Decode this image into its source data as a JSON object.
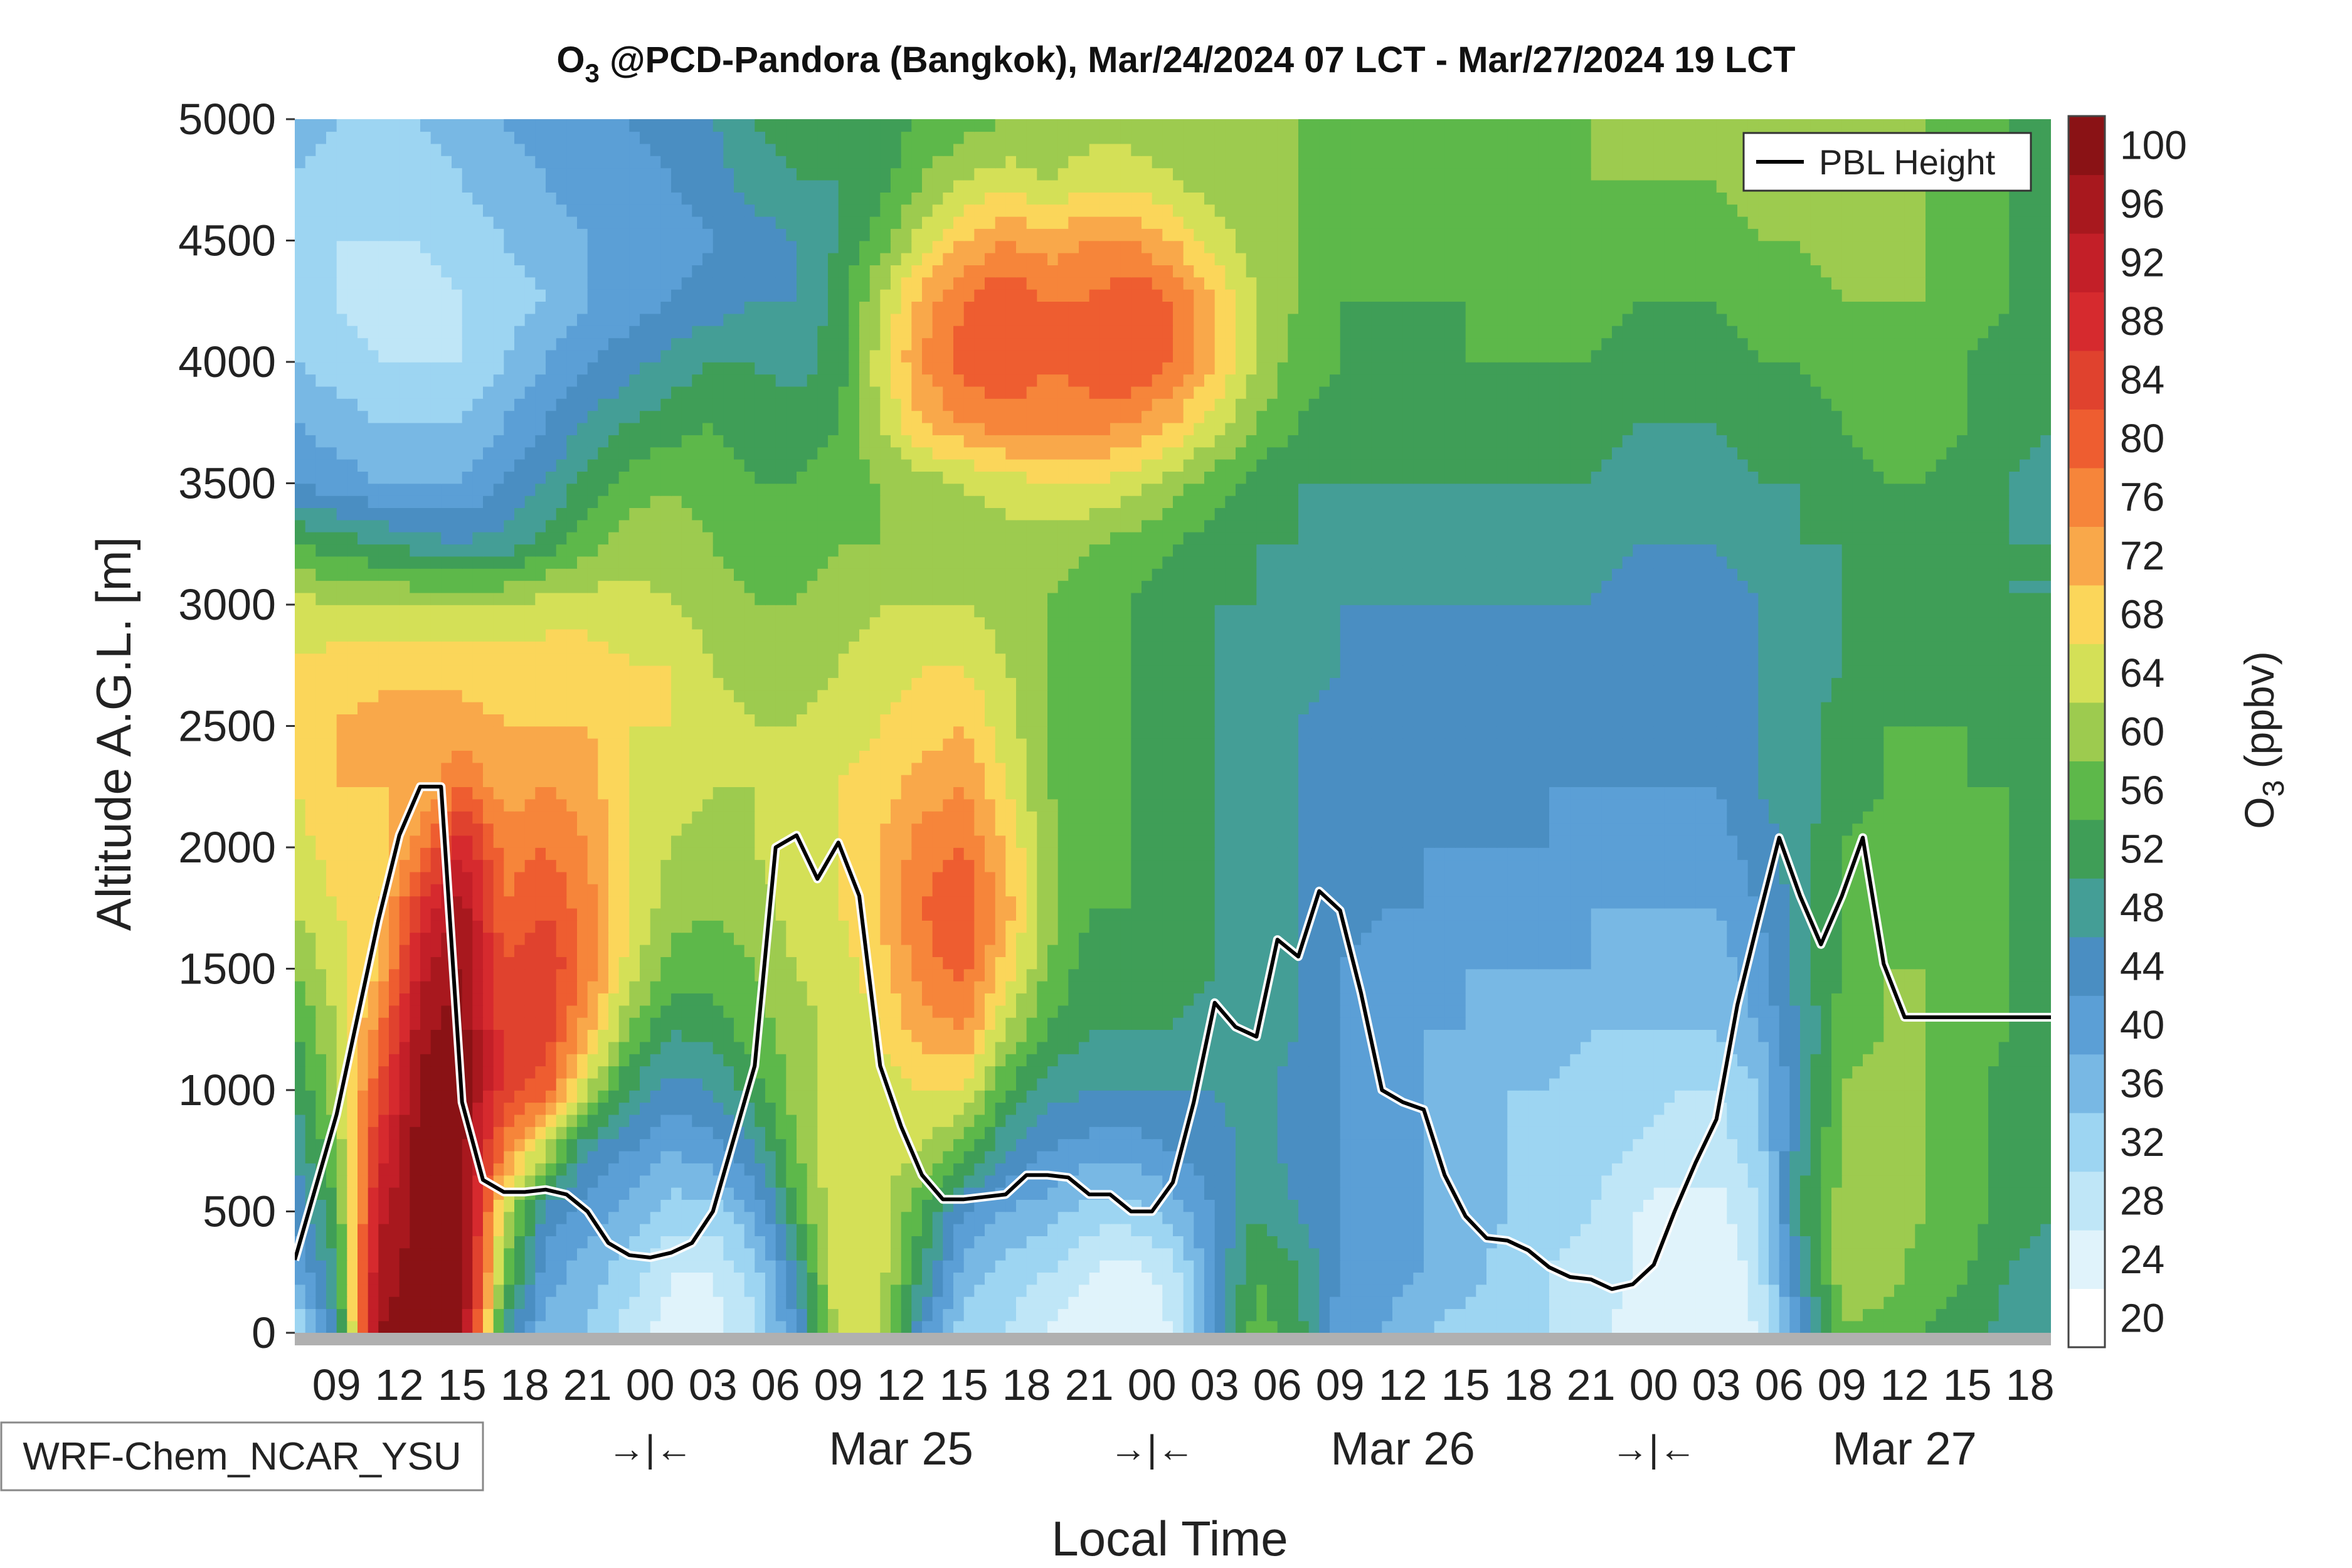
{
  "chart_data": {
    "type": "heatmap",
    "title": {
      "prefix": "O",
      "subscript": "3",
      "rest": " @PCD-Pandora (Bangkok), Mar/24/2024 07 LCT - Mar/27/2024 19 LCT"
    },
    "xlabel": "Local Time",
    "ylabel": "Altitude A.G.L. [m]",
    "colorbar_label": {
      "prefix": "O",
      "subscript": "3",
      "rest": " (ppbv)"
    },
    "model_label": "WRF-Chem_NCAR_YSU",
    "legend": {
      "entries": [
        "PBL Height"
      ],
      "position": "top-right"
    },
    "xlim_hours": [
      0,
      84
    ],
    "ylim": [
      0,
      5000
    ],
    "yticks": [
      0,
      500,
      1000,
      1500,
      2000,
      2500,
      3000,
      3500,
      4000,
      4500,
      5000
    ],
    "xtick_labels": [
      "09",
      "12",
      "15",
      "18",
      "21",
      "00",
      "03",
      "06",
      "09",
      "12",
      "15",
      "18",
      "21",
      "00",
      "03",
      "06",
      "09",
      "12",
      "15",
      "18",
      "21",
      "00",
      "03",
      "06",
      "09",
      "12",
      "15",
      "18"
    ],
    "xtick_hours": [
      2,
      5,
      8,
      11,
      14,
      17,
      20,
      23,
      26,
      29,
      32,
      35,
      38,
      41,
      44,
      47,
      50,
      53,
      56,
      59,
      62,
      65,
      68,
      71,
      74,
      77,
      80,
      83
    ],
    "day_labels": [
      {
        "text": "Mar 25",
        "hour": 29
      },
      {
        "text": "Mar 26",
        "hour": 53
      },
      {
        "text": "Mar 27",
        "hour": 77
      }
    ],
    "night_markers": [
      {
        "text": "→|←",
        "hour": 17
      },
      {
        "text": "→|←",
        "hour": 41
      },
      {
        "text": "→|←",
        "hour": 65
      }
    ],
    "colorbar_levels": [
      20,
      24,
      28,
      32,
      36,
      40,
      44,
      48,
      52,
      56,
      60,
      64,
      68,
      72,
      76,
      80,
      84,
      88,
      92,
      96,
      100
    ],
    "colorbar_colors": [
      "#ffffff",
      "#e0f3fb",
      "#bfe6f7",
      "#9dd5f2",
      "#78b8e4",
      "#5b9fd6",
      "#4a8ec2",
      "#449e96",
      "#3f9e57",
      "#5db84a",
      "#9dcb4f",
      "#d4e057",
      "#fbd65a",
      "#f9a84a",
      "#f6853a",
      "#ee5d30",
      "#e0422e",
      "#d62a2e",
      "#c31f28",
      "#a8181e",
      "#8a1215"
    ],
    "pbl_height": {
      "name": "PBL Height",
      "hours": [
        0,
        1,
        2,
        3,
        4,
        5,
        6,
        7,
        8,
        9,
        10,
        11,
        12,
        13,
        14,
        15,
        16,
        17,
        18,
        19,
        20,
        21,
        22,
        23,
        24,
        25,
        26,
        27,
        28,
        29,
        30,
        31,
        32,
        33,
        34,
        35,
        36,
        37,
        38,
        39,
        40,
        41,
        42,
        43,
        44,
        45,
        46,
        47,
        48,
        49,
        50,
        51,
        52,
        53,
        54,
        55,
        56,
        57,
        58,
        59,
        60,
        61,
        62,
        63,
        64,
        65,
        66,
        67,
        68,
        69,
        70,
        71,
        72,
        73,
        74,
        75,
        76,
        77,
        78,
        79,
        80,
        81,
        82,
        83,
        84
      ],
      "values": [
        300,
        600,
        900,
        1300,
        1700,
        2050,
        2250,
        2250,
        950,
        630,
        580,
        580,
        590,
        570,
        500,
        370,
        320,
        310,
        330,
        370,
        500,
        800,
        1100,
        2000,
        2050,
        1870,
        2020,
        1800,
        1100,
        850,
        650,
        550,
        550,
        560,
        570,
        650,
        650,
        640,
        570,
        570,
        500,
        500,
        620,
        950,
        1360,
        1260,
        1220,
        1620,
        1550,
        1820,
        1740,
        1400,
        1000,
        950,
        920,
        650,
        480,
        390,
        380,
        340,
        270,
        230,
        220,
        180,
        200,
        280,
        500,
        700,
        880,
        1350,
        1700,
        2040,
        1800,
        1600,
        1800,
        2040,
        1520,
        1300,
        1300,
        1300,
        1300,
        1300,
        1300,
        1300,
        1300
      ]
    },
    "field_summary": "Gridded model ozone (ppbv) vs time and altitude; data values estimated from contour colours.",
    "grid_hours": [
      0,
      2,
      4,
      6,
      8,
      10,
      12,
      14,
      16,
      18,
      20,
      22,
      24,
      26,
      28,
      30,
      32,
      34,
      36,
      38,
      40,
      42,
      44,
      46,
      48,
      50,
      52,
      54,
      56,
      58,
      60,
      62,
      64,
      66,
      68,
      70,
      72,
      74,
      76,
      78,
      80,
      82,
      84
    ],
    "grid_altitudes": [
      0,
      250,
      500,
      750,
      1000,
      1250,
      1500,
      1750,
      2000,
      2250,
      2500,
      2750,
      3000,
      3250,
      3500,
      3750,
      4000,
      4250,
      4500,
      4750,
      5000
    ],
    "o3_ppbv": [
      [
        26,
        44,
        96,
        98,
        98,
        45,
        34,
        32,
        26,
        22,
        22,
        27,
        40,
        62,
        60,
        40,
        30,
        28,
        24,
        20,
        20,
        24,
        42,
        54,
        50,
        36,
        36,
        32,
        30,
        28,
        28,
        26,
        22,
        20,
        20,
        24,
        40,
        56,
        54,
        52,
        50,
        46,
        45
      ],
      [
        36,
        48,
        94,
        98,
        98,
        56,
        38,
        34,
        30,
        24,
        24,
        30,
        44,
        64,
        62,
        48,
        34,
        30,
        28,
        24,
        22,
        26,
        40,
        52,
        48,
        40,
        38,
        36,
        34,
        30,
        28,
        26,
        24,
        20,
        20,
        26,
        44,
        58,
        58,
        54,
        52,
        48,
        46
      ],
      [
        40,
        52,
        90,
        98,
        99,
        62,
        42,
        38,
        34,
        30,
        30,
        36,
        52,
        64,
        62,
        52,
        40,
        36,
        34,
        30,
        30,
        34,
        40,
        48,
        44,
        40,
        38,
        36,
        34,
        32,
        30,
        28,
        24,
        22,
        22,
        28,
        48,
        58,
        58,
        56,
        54,
        50,
        48
      ],
      [
        44,
        56,
        86,
        98,
        99,
        74,
        60,
        44,
        40,
        36,
        38,
        44,
        56,
        64,
        62,
        60,
        54,
        44,
        40,
        38,
        38,
        40,
        42,
        46,
        42,
        40,
        38,
        36,
        34,
        32,
        30,
        30,
        28,
        26,
        26,
        30,
        46,
        56,
        58,
        56,
        54,
        50,
        48
      ],
      [
        48,
        58,
        80,
        97,
        99,
        82,
        78,
        60,
        48,
        42,
        44,
        50,
        58,
        62,
        62,
        64,
        64,
        52,
        46,
        44,
        44,
        44,
        44,
        46,
        42,
        40,
        38,
        36,
        34,
        32,
        32,
        30,
        30,
        28,
        28,
        32,
        44,
        56,
        58,
        56,
        54,
        50,
        48
      ],
      [
        52,
        60,
        74,
        95,
        98,
        82,
        82,
        70,
        56,
        48,
        50,
        54,
        58,
        62,
        64,
        70,
        72,
        60,
        52,
        48,
        48,
        48,
        46,
        46,
        44,
        40,
        38,
        36,
        36,
        34,
        34,
        32,
        32,
        32,
        32,
        36,
        44,
        54,
        56,
        56,
        54,
        52,
        50
      ],
      [
        56,
        62,
        68,
        90,
        97,
        80,
        84,
        74,
        62,
        54,
        54,
        56,
        60,
        62,
        66,
        74,
        78,
        66,
        56,
        50,
        50,
        50,
        48,
        46,
        44,
        40,
        38,
        38,
        36,
        36,
        36,
        36,
        34,
        34,
        34,
        38,
        46,
        52,
        56,
        56,
        54,
        52,
        50
      ],
      [
        60,
        64,
        66,
        84,
        94,
        76,
        80,
        74,
        64,
        58,
        56,
        58,
        62,
        64,
        68,
        76,
        80,
        70,
        58,
        52,
        52,
        50,
        48,
        46,
        44,
        42,
        40,
        40,
        38,
        38,
        38,
        36,
        36,
        36,
        36,
        40,
        46,
        52,
        54,
        56,
        54,
        52,
        50
      ],
      [
        62,
        66,
        66,
        74,
        88,
        74,
        76,
        72,
        64,
        60,
        58,
        60,
        62,
        64,
        68,
        74,
        76,
        68,
        58,
        52,
        52,
        50,
        48,
        46,
        44,
        42,
        40,
        40,
        40,
        40,
        40,
        38,
        38,
        38,
        38,
        42,
        46,
        52,
        54,
        54,
        54,
        52,
        50
      ],
      [
        64,
        68,
        68,
        68,
        76,
        70,
        72,
        70,
        64,
        62,
        60,
        60,
        62,
        64,
        66,
        70,
        72,
        64,
        56,
        52,
        52,
        50,
        48,
        46,
        44,
        42,
        40,
        40,
        40,
        40,
        40,
        40,
        40,
        40,
        40,
        44,
        46,
        50,
        52,
        54,
        52,
        52,
        50
      ],
      [
        66,
        68,
        70,
        70,
        70,
        68,
        68,
        68,
        64,
        64,
        62,
        60,
        60,
        62,
        64,
        66,
        68,
        62,
        56,
        52,
        52,
        50,
        48,
        46,
        44,
        42,
        42,
        40,
        40,
        40,
        40,
        40,
        40,
        40,
        40,
        44,
        46,
        50,
        52,
        52,
        52,
        50,
        50
      ],
      [
        64,
        66,
        66,
        66,
        66,
        66,
        66,
        66,
        64,
        64,
        60,
        58,
        58,
        60,
        62,
        64,
        64,
        60,
        56,
        52,
        52,
        50,
        48,
        46,
        46,
        44,
        42,
        42,
        42,
        42,
        42,
        42,
        42,
        40,
        40,
        44,
        46,
        48,
        50,
        50,
        50,
        50,
        48
      ],
      [
        62,
        60,
        60,
        60,
        60,
        60,
        62,
        62,
        62,
        60,
        58,
        56,
        56,
        58,
        60,
        60,
        60,
        58,
        56,
        54,
        52,
        50,
        48,
        48,
        46,
        44,
        44,
        44,
        44,
        44,
        44,
        44,
        42,
        42,
        42,
        44,
        46,
        48,
        50,
        50,
        50,
        48,
        48
      ],
      [
        52,
        50,
        48,
        46,
        44,
        46,
        50,
        54,
        58,
        58,
        56,
        54,
        54,
        56,
        56,
        58,
        58,
        58,
        58,
        56,
        54,
        52,
        50,
        48,
        48,
        46,
        46,
        46,
        46,
        46,
        46,
        46,
        44,
        44,
        44,
        46,
        48,
        48,
        50,
        50,
        50,
        48,
        48
      ],
      [
        40,
        38,
        36,
        36,
        36,
        40,
        44,
        50,
        54,
        56,
        54,
        52,
        52,
        54,
        56,
        58,
        60,
        62,
        64,
        64,
        62,
        58,
        54,
        50,
        48,
        48,
        48,
        48,
        48,
        48,
        48,
        48,
        46,
        46,
        46,
        48,
        48,
        50,
        52,
        52,
        50,
        48,
        46
      ],
      [
        36,
        34,
        32,
        32,
        32,
        36,
        40,
        44,
        48,
        50,
        52,
        50,
        50,
        52,
        60,
        68,
        72,
        74,
        74,
        74,
        72,
        68,
        62,
        56,
        52,
        50,
        50,
        50,
        50,
        50,
        50,
        50,
        48,
        48,
        48,
        50,
        50,
        52,
        54,
        54,
        52,
        50,
        48
      ],
      [
        32,
        30,
        28,
        28,
        28,
        32,
        36,
        40,
        42,
        46,
        48,
        48,
        46,
        50,
        62,
        72,
        78,
        80,
        76,
        78,
        80,
        76,
        68,
        60,
        54,
        52,
        50,
        50,
        52,
        52,
        52,
        52,
        50,
        50,
        50,
        52,
        52,
        54,
        54,
        54,
        52,
        50,
        48
      ],
      [
        30,
        28,
        26,
        26,
        28,
        30,
        32,
        36,
        38,
        40,
        42,
        44,
        44,
        50,
        60,
        70,
        76,
        80,
        76,
        76,
        80,
        76,
        68,
        60,
        56,
        52,
        52,
        52,
        52,
        52,
        54,
        54,
        52,
        52,
        52,
        54,
        54,
        56,
        56,
        56,
        54,
        52,
        50
      ],
      [
        30,
        28,
        28,
        28,
        30,
        32,
        34,
        36,
        36,
        38,
        40,
        42,
        44,
        48,
        54,
        62,
        68,
        72,
        70,
        72,
        72,
        68,
        62,
        58,
        56,
        54,
        54,
        52,
        52,
        54,
        54,
        56,
        54,
        54,
        54,
        56,
        56,
        58,
        58,
        56,
        54,
        52,
        50
      ],
      [
        32,
        30,
        30,
        30,
        32,
        34,
        36,
        38,
        38,
        40,
        42,
        46,
        48,
        48,
        50,
        56,
        60,
        62,
        60,
        62,
        62,
        60,
        58,
        56,
        56,
        54,
        54,
        52,
        52,
        54,
        54,
        56,
        56,
        56,
        56,
        58,
        58,
        58,
        58,
        56,
        54,
        52,
        50
      ],
      [
        34,
        32,
        32,
        32,
        34,
        36,
        38,
        40,
        40,
        42,
        44,
        48,
        50,
        50,
        50,
        52,
        54,
        56,
        56,
        58,
        58,
        58,
        56,
        56,
        56,
        54,
        54,
        52,
        52,
        54,
        54,
        56,
        56,
        56,
        56,
        58,
        58,
        58,
        58,
        56,
        54,
        52,
        50
      ]
    ]
  }
}
